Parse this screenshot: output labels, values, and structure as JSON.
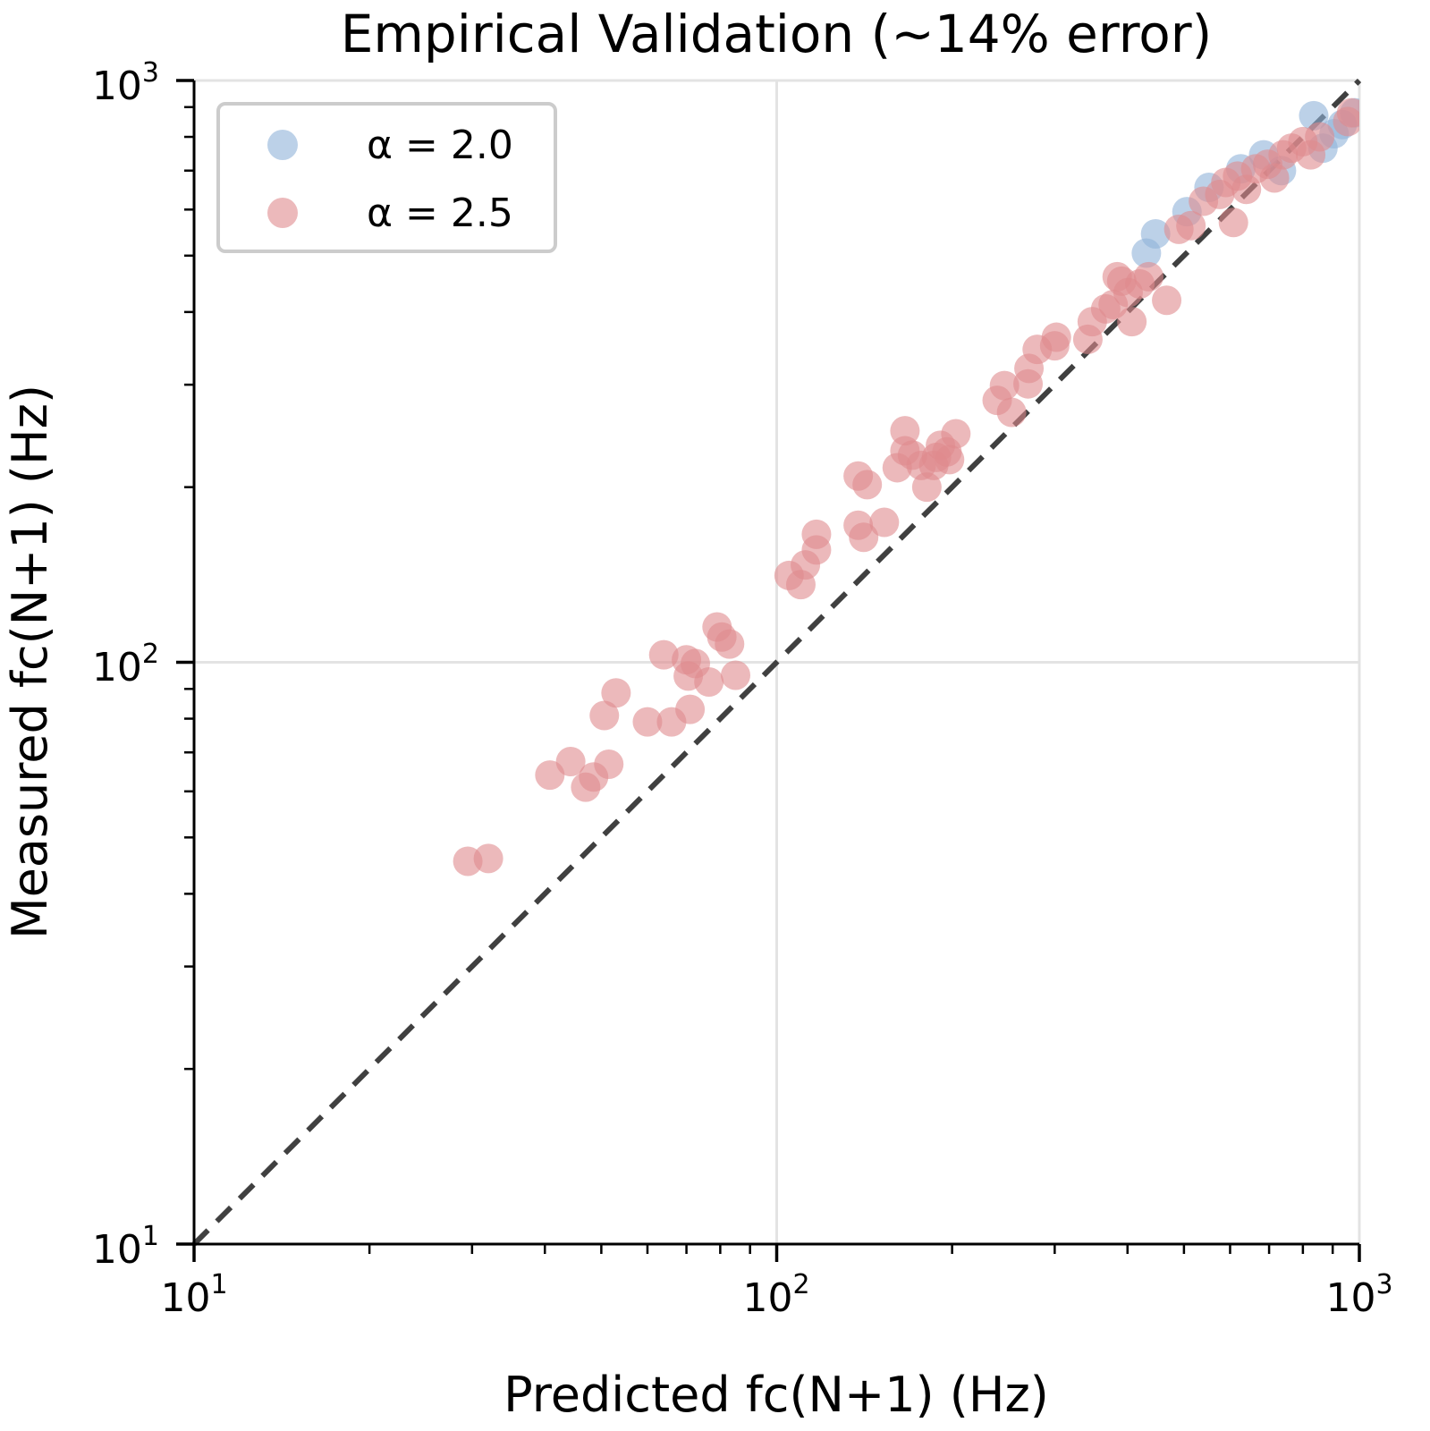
{
  "chart_data": {
    "type": "scatter",
    "title": "Empirical Validation (~14% error)",
    "xlabel": "Predicted fc(N+1) (Hz)",
    "ylabel": "Measured fc(N+1) (Hz)",
    "xscale": "log",
    "yscale": "log",
    "xlim": [
      10,
      1000
    ],
    "ylim": [
      10,
      1000
    ],
    "grid": true,
    "legend_position": "top-left",
    "x_ticks": [
      {
        "value": 10,
        "base": "10",
        "exp": "1"
      },
      {
        "value": 100,
        "base": "10",
        "exp": "2"
      },
      {
        "value": 1000,
        "base": "10",
        "exp": "3"
      }
    ],
    "y_ticks": [
      {
        "value": 10,
        "base": "10",
        "exp": "1"
      },
      {
        "value": 100,
        "base": "10",
        "exp": "2"
      },
      {
        "value": 1000,
        "base": "10",
        "exp": "3"
      }
    ],
    "reference_line": {
      "label": "y = x",
      "style": "dashed",
      "color": "#404040"
    },
    "series": [
      {
        "name": "α = 2.0",
        "color": "#8fb3d9",
        "x": [
          431,
          447,
          506,
          552,
          626,
          685,
          735,
          835,
          866,
          905,
          935,
          982
        ],
        "y": [
          505,
          545,
          595,
          655,
          705,
          745,
          700,
          870,
          765,
          810,
          840,
          880
        ]
      },
      {
        "name": "α = 2.5",
        "color": "#e08a8d",
        "x": [
          29.5,
          32,
          40.8,
          44.3,
          47,
          48.5,
          51.5,
          50.6,
          53,
          60,
          66,
          71,
          64,
          70,
          70.5,
          72.5,
          76.5,
          79,
          80.5,
          83,
          85,
          105,
          110,
          112,
          117,
          117,
          138,
          143,
          138,
          141,
          153,
          161,
          166,
          166,
          171,
          177,
          181,
          188,
          191,
          196,
          203,
          198,
          186,
          239,
          246,
          253,
          270,
          271,
          280,
          300,
          302,
          342,
          348,
          367,
          378,
          384,
          391,
          401,
          407,
          420,
          435,
          467,
          490,
          514,
          540,
          576,
          608,
          590,
          618,
          640,
          664,
          696,
          715,
          740,
          765,
          800,
          825,
          855,
          955,
          970
        ],
        "y": [
          45.5,
          46,
          64,
          67.5,
          61,
          63.5,
          66.8,
          81,
          88.6,
          79,
          79,
          83,
          103,
          101,
          94.7,
          99.5,
          92.5,
          115,
          110.5,
          107.5,
          95,
          141,
          136,
          147,
          156,
          166,
          209,
          202,
          172,
          164,
          174,
          216,
          250,
          231,
          227,
          218,
          200,
          225,
          236,
          230,
          247,
          223,
          218,
          282,
          299,
          269,
          301,
          320,
          345,
          350,
          362,
          359,
          385,
          405,
          412,
          460,
          452,
          432,
          385,
          447,
          460,
          419,
          555,
          563,
          620,
          637,
          570,
          668,
          685,
          650,
          705,
          718,
          680,
          745,
          765,
          785,
          745,
          800,
          850,
          880
        ]
      }
    ]
  }
}
